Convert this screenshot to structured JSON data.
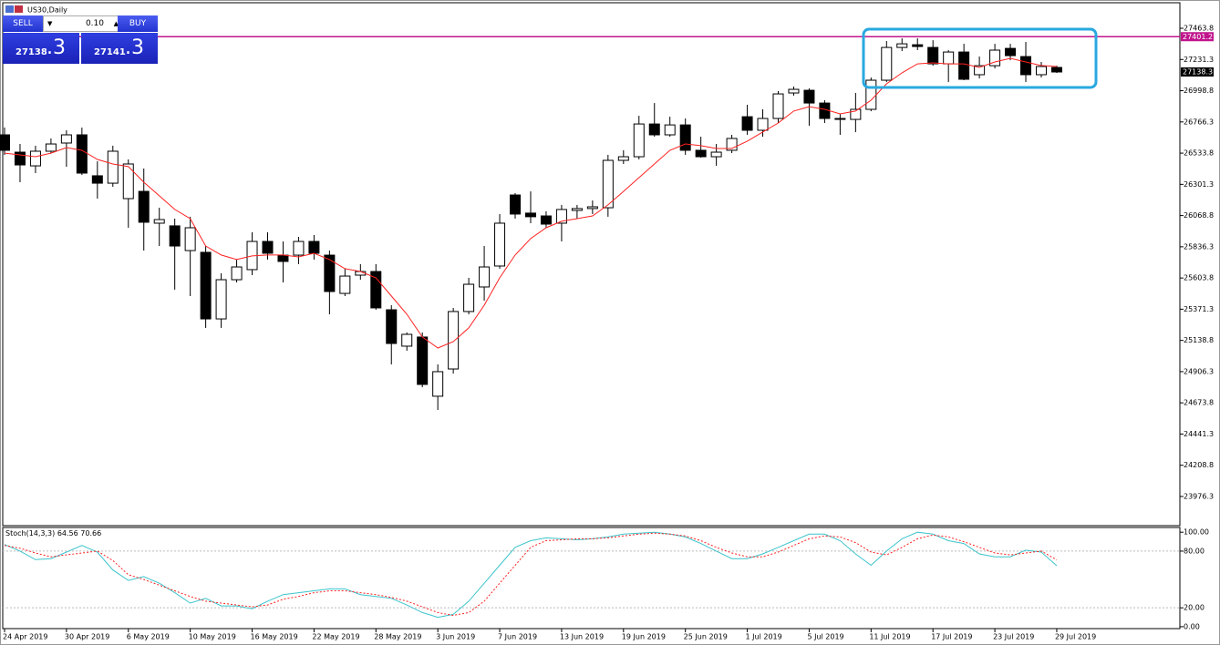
{
  "window": {
    "title": "US30,Daily"
  },
  "trade_panel": {
    "sell_label": "SELL",
    "buy_label": "BUY",
    "lot": "0.10",
    "sell_price": {
      "main": "27138",
      "fraction": ".3"
    },
    "buy_price": {
      "main": "27141",
      "fraction": ".3"
    }
  },
  "chart_data": [
    {
      "type": "candlestick",
      "categories": [
        "24 Apr 2019",
        null,
        null,
        null,
        "30 Apr 2019",
        null,
        null,
        null,
        "6 May 2019",
        null,
        null,
        null,
        "10 May 2019",
        null,
        null,
        null,
        "16 May 2019",
        null,
        null,
        null,
        "22 May 2019",
        null,
        null,
        null,
        "28 May 2019",
        null,
        null,
        null,
        "3 Jun 2019",
        null,
        null,
        null,
        "7 Jun 2019",
        null,
        null,
        null,
        "13 Jun 2019",
        null,
        null,
        null,
        "19 Jun 2019",
        null,
        null,
        null,
        "25 Jun 2019",
        null,
        null,
        null,
        "1 Jul 2019",
        null,
        null,
        null,
        "5 Jul 2019",
        null,
        null,
        null,
        "11 Jul 2019",
        null,
        null,
        null,
        "17 Jul 2019",
        null,
        null,
        null,
        "23 Jul 2019",
        null,
        null,
        null,
        "29 Jul 2019"
      ],
      "open": [
        26670,
        26541,
        26439,
        26548,
        26609,
        26670,
        26365,
        26310,
        26195,
        26249,
        26012,
        25992,
        25808,
        25795,
        25299,
        25591,
        25666,
        25876,
        25774,
        25774,
        25876,
        25774,
        25489,
        25625,
        25652,
        25367,
        25096,
        25164,
        24723,
        24926,
        25354,
        25537,
        25693,
        26222,
        26087,
        26066,
        26012,
        26107,
        26121,
        26127,
        26480,
        26507,
        26751,
        26670,
        26744,
        26555,
        26507,
        26555,
        26805,
        26704,
        26792,
        26982,
        27002,
        26907,
        26785,
        26785,
        26860,
        27077,
        27321,
        27341,
        27321,
        27199,
        27287,
        27118,
        27185,
        27314,
        27253,
        27118,
        27172
      ],
      "high": [
        26724,
        26602,
        26589,
        26643,
        26704,
        26724,
        26473,
        26589,
        26487,
        26419,
        26127,
        26046,
        26060,
        25842,
        25639,
        25741,
        25944,
        25944,
        25876,
        25910,
        25924,
        25808,
        25673,
        25707,
        25707,
        25401,
        25198,
        25198,
        24960,
        25381,
        25605,
        25842,
        26080,
        26236,
        26249,
        26100,
        26148,
        26148,
        26181,
        26521,
        26555,
        26812,
        26907,
        26805,
        26792,
        26656,
        26602,
        26670,
        26894,
        26860,
        26996,
        27030,
        27016,
        26928,
        26826,
        26982,
        27097,
        27369,
        27389,
        27389,
        27375,
        27301,
        27348,
        27253,
        27348,
        27348,
        27362,
        27213,
        27185
      ],
      "low": [
        26521,
        26317,
        26385,
        26534,
        26432,
        26371,
        26195,
        26283,
        25978,
        25808,
        25842,
        25517,
        25469,
        25232,
        25232,
        25571,
        25625,
        25741,
        25571,
        25707,
        25741,
        25333,
        25469,
        25591,
        25367,
        24960,
        25062,
        24790,
        24621,
        24892,
        25333,
        25435,
        25673,
        26046,
        26012,
        25978,
        25876,
        26046,
        26080,
        26060,
        26453,
        26487,
        26656,
        26656,
        26521,
        26500,
        26439,
        26534,
        26670,
        26656,
        26758,
        26962,
        26738,
        26758,
        26670,
        26690,
        26846,
        27063,
        27294,
        27301,
        27185,
        27063,
        27077,
        27090,
        27165,
        27226,
        27063,
        27097,
        27131
      ],
      "close": [
        26555,
        26446,
        26548,
        26602,
        26670,
        26385,
        26310,
        26548,
        26453,
        26019,
        26039,
        25842,
        25978,
        25299,
        25591,
        25686,
        25876,
        25788,
        25727,
        25876,
        25788,
        25503,
        25618,
        25652,
        25381,
        25116,
        25184,
        24811,
        24906,
        25354,
        25557,
        25686,
        26012,
        26080,
        26060,
        26005,
        26114,
        26121,
        26134,
        26480,
        26507,
        26751,
        26670,
        26744,
        26555,
        26507,
        26541,
        26643,
        26704,
        26792,
        26975,
        27009,
        26907,
        26792,
        26792,
        26860,
        27077,
        27321,
        27348,
        27328,
        27199,
        27287,
        27084,
        27185,
        27301,
        27260,
        27118,
        27179,
        27138.3
      ],
      "up_color": "#ffffff",
      "down_color": "#000000",
      "overlay": {
        "color": "#ff2020",
        "values": [
          26534,
          26521,
          26507,
          26534,
          26575,
          26555,
          26487,
          26453,
          26433,
          26317,
          26216,
          26114,
          26046,
          25842,
          25775,
          25741,
          25768,
          25775,
          25775,
          25761,
          25788,
          25741,
          25673,
          25652,
          25605,
          25469,
          25334,
          25164,
          25082,
          25130,
          25232,
          25401,
          25605,
          25775,
          25897,
          25978,
          26026,
          26046,
          26066,
          26148,
          26249,
          26351,
          26453,
          26555,
          26602,
          26589,
          26568,
          26568,
          26623,
          26691,
          26758,
          26847,
          26880,
          26860,
          26826,
          26847,
          26928,
          27050,
          27132,
          27199,
          27206,
          27199,
          27199,
          27172,
          27213,
          27240,
          27213,
          27186,
          27179
        ]
      },
      "ylim": [
        23759,
        27654
      ],
      "yticks": [
        27463.8,
        27231.3,
        26998.8,
        26766.3,
        26533.8,
        26301.3,
        26068.8,
        25836.3,
        25603.8,
        25371.3,
        25138.8,
        24906.3,
        24673.8,
        24441.3,
        24208.8,
        23976.3
      ],
      "hline": {
        "value": 27401.2,
        "color": "#c0158c"
      },
      "last_price": 27138.3,
      "highlight_color": "#29a8e0"
    },
    {
      "type": "line",
      "title": "Stoch(14,3,3)",
      "series": [
        {
          "color": "#3cc4cc",
          "values": [
            87,
            80,
            71,
            72,
            79,
            86,
            79,
            60,
            49,
            53,
            46,
            36,
            25,
            30,
            22,
            22,
            19,
            27,
            34,
            36,
            38,
            40,
            40,
            34,
            32,
            30,
            23,
            15,
            10,
            13,
            27,
            46,
            65,
            84,
            91,
            94,
            93,
            92,
            93,
            95,
            98,
            99,
            100,
            98,
            95,
            88,
            80,
            72,
            72,
            77,
            84,
            91,
            98,
            98,
            91,
            77,
            65,
            80,
            93,
            100,
            98,
            91,
            88,
            77,
            74,
            74,
            81,
            79,
            64.56
          ]
        },
        {
          "color": "#ff2020",
          "dashed": true,
          "values": [
            86,
            83,
            78,
            74,
            76,
            78,
            80,
            70,
            55,
            50,
            44,
            38,
            32,
            27,
            25,
            23,
            21,
            23,
            29,
            32,
            36,
            38,
            38,
            36,
            34,
            31,
            27,
            21,
            15,
            12,
            15,
            27,
            46,
            65,
            84,
            91,
            92,
            93,
            93,
            94,
            96,
            98,
            99,
            98,
            96,
            91,
            84,
            78,
            74,
            74,
            79,
            86,
            93,
            96,
            95,
            89,
            79,
            76,
            84,
            93,
            97,
            95,
            90,
            84,
            78,
            76,
            78,
            80,
            70.66
          ]
        }
      ],
      "ylim": [
        -2,
        105
      ],
      "yticks": [
        {
          "value": 100,
          "label": "100.00"
        },
        {
          "value": 80,
          "label": "80.00"
        },
        {
          "value": 20,
          "label": "20.00"
        },
        {
          "value": 0,
          "label": "0.00"
        }
      ]
    }
  ]
}
